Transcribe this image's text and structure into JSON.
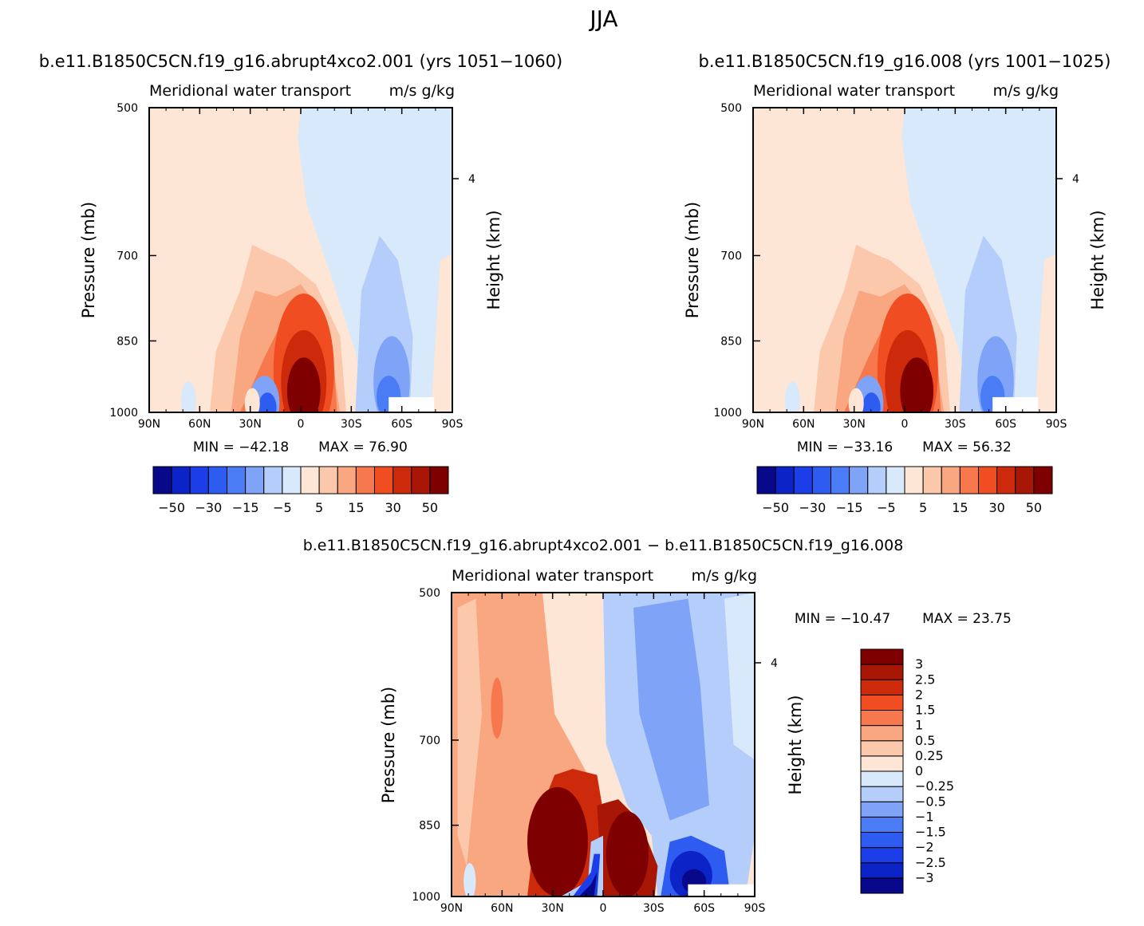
{
  "figure": {
    "title": "JJA"
  },
  "colormap": [
    "#08088a",
    "#0c23c8",
    "#1c3ee8",
    "#2f5cf0",
    "#4a7cf6",
    "#7ea3f7",
    "#b4cdfa",
    "#d8e9fb",
    "#fde6d6",
    "#fcc8ac",
    "#f8a780",
    "#f6784c",
    "#f04e22",
    "#cc2a0a",
    "#a81606",
    "#7e0000"
  ],
  "chart_data": [
    {
      "id": "top_left",
      "type": "heatmap",
      "title": "b.e11.B1850C5CN.f19_g16.abrupt4xco2.001 (yrs 1051−1060)",
      "subtitle": "Meridional water transport",
      "units": "m/s g/kg",
      "xlabel": "",
      "ylabel": "Pressure (mb)",
      "ylabel_right": "Height (km)",
      "x_ticks": [
        "90N",
        "60N",
        "30N",
        "0",
        "30S",
        "60S",
        "90S"
      ],
      "x_values": [
        90,
        60,
        30,
        0,
        -30,
        -60,
        -90
      ],
      "y_ticks": [
        "500",
        "700",
        "850",
        "1000"
      ],
      "y_values": [
        500,
        700,
        850,
        1000
      ],
      "right_ticks": [
        "4"
      ],
      "right_values": [
        4
      ],
      "ylim": [
        1000,
        500
      ],
      "min_label": "MIN = −42.18",
      "max_label": "MAX = 76.90",
      "min": -42.18,
      "max": 76.9,
      "colorbar": {
        "orientation": "horizontal",
        "levels": [
          -50,
          -40,
          -30,
          -20,
          -15,
          -10,
          -5,
          0,
          5,
          10,
          15,
          20,
          30,
          40,
          50
        ],
        "labels": [
          "−50",
          "−30",
          "−15",
          "−5",
          "5",
          "15",
          "30",
          "50"
        ]
      }
    },
    {
      "id": "top_right",
      "type": "heatmap",
      "title": "b.e11.B1850C5CN.f19_g16.008 (yrs 1001−1025)",
      "subtitle": "Meridional water transport",
      "units": "m/s g/kg",
      "xlabel": "",
      "ylabel": "Pressure (mb)",
      "ylabel_right": "Height (km)",
      "x_ticks": [
        "90N",
        "60N",
        "30N",
        "0",
        "30S",
        "60S",
        "90S"
      ],
      "x_values": [
        90,
        60,
        30,
        0,
        -30,
        -60,
        -90
      ],
      "y_ticks": [
        "500",
        "700",
        "850",
        "1000"
      ],
      "y_values": [
        500,
        700,
        850,
        1000
      ],
      "right_ticks": [
        "4"
      ],
      "right_values": [
        4
      ],
      "ylim": [
        1000,
        500
      ],
      "min_label": "MIN = −33.16",
      "max_label": "MAX = 56.32",
      "min": -33.16,
      "max": 56.32,
      "colorbar": {
        "orientation": "horizontal",
        "levels": [
          -50,
          -40,
          -30,
          -20,
          -15,
          -10,
          -5,
          0,
          5,
          10,
          15,
          20,
          30,
          40,
          50
        ],
        "labels": [
          "−50",
          "−30",
          "−15",
          "−5",
          "5",
          "15",
          "30",
          "50"
        ]
      }
    },
    {
      "id": "bottom_diff",
      "type": "heatmap",
      "title": "b.e11.B1850C5CN.f19_g16.abrupt4xco2.001 − b.e11.B1850C5CN.f19_g16.008",
      "subtitle": "Meridional water transport",
      "units": "m/s g/kg",
      "xlabel": "",
      "ylabel": "Pressure (mb)",
      "ylabel_right": "Height (km)",
      "x_ticks": [
        "90N",
        "60N",
        "30N",
        "0",
        "30S",
        "60S",
        "90S"
      ],
      "x_values": [
        90,
        60,
        30,
        0,
        -30,
        -60,
        -90
      ],
      "y_ticks": [
        "500",
        "700",
        "850",
        "1000"
      ],
      "y_values": [
        500,
        700,
        850,
        1000
      ],
      "right_ticks": [
        "4"
      ],
      "right_values": [
        4
      ],
      "ylim": [
        1000,
        500
      ],
      "min_label": "MIN = −10.47",
      "max_label": "MAX = 23.75",
      "min": -10.47,
      "max": 23.75,
      "colorbar": {
        "orientation": "vertical",
        "levels": [
          -3,
          -2.5,
          -2,
          -1.5,
          -1,
          -0.5,
          -0.25,
          0,
          0.25,
          0.5,
          1,
          1.5,
          2,
          2.5,
          3
        ],
        "labels": [
          "−3",
          "−2.5",
          "−2",
          "−1.5",
          "−1",
          "−0.5",
          "−0.25",
          "0",
          "0.25",
          "0.5",
          "1",
          "1.5",
          "2",
          "2.5",
          "3"
        ]
      }
    }
  ]
}
